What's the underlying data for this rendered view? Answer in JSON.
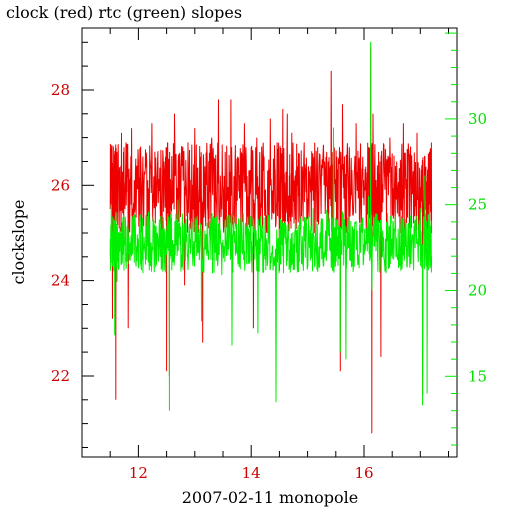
{
  "chart_data": {
    "type": "line",
    "title": "clock (red) rtc (green) slopes",
    "xlabel": "2007-02-11 monopole",
    "ylabel_left": "clockslope",
    "ylabel_right": "",
    "xlim": [
      11.0,
      17.65
    ],
    "ylim_left": [
      20.3,
      29.3
    ],
    "ylim_right": [
      10.3,
      35.3
    ],
    "x_ticks": [
      12,
      14,
      16
    ],
    "x_tick_labels": [
      "12",
      "14",
      "16"
    ],
    "y_left_ticks": [
      22,
      24,
      26,
      28
    ],
    "y_left_tick_labels": [
      "22",
      "24",
      "26",
      "28"
    ],
    "y_right_ticks": [
      15,
      20,
      25,
      30
    ],
    "y_right_tick_labels": [
      "15",
      "20",
      "25",
      "30"
    ],
    "grid": false,
    "colors": {
      "clock": "#ee0000",
      "rtc": "#00ee00",
      "left_axis_labels": "#cc0000",
      "right_axis_labels": "#00dd00",
      "frame": "#000000"
    },
    "series": [
      {
        "name": "clock",
        "axis": "left",
        "x_start": 11.5,
        "x_end": 17.2,
        "typical_range": [
          25.0,
          26.9
        ],
        "points": [
          [
            11.5,
            25.5
          ],
          [
            11.52,
            26.5
          ],
          [
            11.54,
            23.2
          ],
          [
            11.56,
            26.4
          ],
          [
            11.58,
            24.5
          ],
          [
            11.6,
            21.5
          ],
          [
            11.62,
            26.7
          ],
          [
            11.66,
            25.1
          ],
          [
            11.7,
            27.1
          ],
          [
            11.74,
            24.8
          ],
          [
            11.78,
            26.9
          ],
          [
            11.82,
            23.0
          ],
          [
            11.88,
            27.2
          ],
          [
            11.94,
            25.5
          ],
          [
            12.0,
            26.5
          ],
          [
            12.06,
            25.0
          ],
          [
            12.12,
            26.3
          ],
          [
            12.18,
            25.4
          ],
          [
            12.24,
            27.3
          ],
          [
            12.3,
            25.2
          ],
          [
            12.36,
            26.1
          ],
          [
            12.42,
            25.0
          ],
          [
            12.48,
            26.6
          ],
          [
            12.5,
            22.1
          ],
          [
            12.52,
            26.9
          ],
          [
            12.55,
            22.0
          ],
          [
            12.58,
            25.7
          ],
          [
            12.64,
            27.5
          ],
          [
            12.7,
            25.3
          ],
          [
            12.76,
            26.4
          ],
          [
            12.82,
            23.9
          ],
          [
            12.88,
            26.9
          ],
          [
            12.94,
            25.3
          ],
          [
            13.0,
            27.2
          ],
          [
            13.06,
            25.0
          ],
          [
            13.1,
            26.5
          ],
          [
            13.14,
            22.7
          ],
          [
            13.18,
            26.4
          ],
          [
            13.24,
            25.1
          ],
          [
            13.3,
            27.0
          ],
          [
            13.36,
            25.0
          ],
          [
            13.42,
            27.8
          ],
          [
            13.48,
            25.5
          ],
          [
            13.54,
            26.7
          ],
          [
            13.6,
            25.0
          ],
          [
            13.64,
            27.8
          ],
          [
            13.7,
            25.2
          ],
          [
            13.76,
            26.6
          ],
          [
            13.82,
            25.0
          ],
          [
            13.88,
            27.3
          ],
          [
            13.94,
            25.3
          ],
          [
            14.0,
            26.8
          ],
          [
            14.04,
            23.0
          ],
          [
            14.1,
            27.0
          ],
          [
            14.16,
            25.1
          ],
          [
            14.22,
            26.3
          ],
          [
            14.28,
            25.0
          ],
          [
            14.34,
            27.4
          ],
          [
            14.4,
            25.4
          ],
          [
            14.46,
            26.9
          ],
          [
            14.5,
            24.2
          ],
          [
            14.56,
            27.6
          ],
          [
            14.6,
            25.3
          ],
          [
            14.64,
            27.5
          ],
          [
            14.68,
            25.5
          ],
          [
            14.72,
            27.1
          ],
          [
            14.76,
            25.2
          ],
          [
            14.82,
            26.4
          ],
          [
            14.88,
            25.1
          ],
          [
            14.94,
            26.9
          ],
          [
            15.0,
            25.3
          ],
          [
            15.06,
            26.4
          ],
          [
            15.12,
            25.0
          ],
          [
            15.18,
            26.8
          ],
          [
            15.24,
            25.4
          ],
          [
            15.3,
            26.5
          ],
          [
            15.36,
            25.1
          ],
          [
            15.42,
            28.4
          ],
          [
            15.46,
            25.3
          ],
          [
            15.52,
            26.6
          ],
          [
            15.58,
            22.1
          ],
          [
            15.62,
            27.7
          ],
          [
            15.68,
            25.0
          ],
          [
            15.74,
            26.8
          ],
          [
            15.8,
            25.4
          ],
          [
            15.86,
            27.3
          ],
          [
            15.92,
            25.3
          ],
          [
            15.98,
            26.6
          ],
          [
            16.04,
            25.0
          ],
          [
            16.08,
            26.8
          ],
          [
            16.12,
            28.9
          ],
          [
            16.14,
            20.8
          ],
          [
            16.16,
            27.5
          ],
          [
            16.22,
            25.2
          ],
          [
            16.26,
            26.7
          ],
          [
            16.3,
            22.4
          ],
          [
            16.34,
            26.4
          ],
          [
            16.4,
            25.2
          ],
          [
            16.46,
            27.0
          ],
          [
            16.52,
            25.3
          ],
          [
            16.58,
            26.5
          ],
          [
            16.64,
            25.0
          ],
          [
            16.7,
            27.3
          ],
          [
            16.76,
            25.4
          ],
          [
            16.82,
            26.7
          ],
          [
            16.88,
            25.2
          ],
          [
            16.94,
            27.1
          ],
          [
            17.0,
            25.3
          ],
          [
            17.04,
            21.6
          ],
          [
            17.08,
            26.6
          ],
          [
            17.12,
            24.8
          ],
          [
            17.16,
            26.7
          ],
          [
            17.2,
            25.0
          ]
        ]
      },
      {
        "name": "rtc",
        "axis": "right",
        "x_start": 11.5,
        "x_end": 17.2,
        "typical_range": [
          21.0,
          24.5
        ],
        "points": [
          [
            11.5,
            22.0
          ],
          [
            11.52,
            25.0
          ],
          [
            11.54,
            21.4
          ],
          [
            11.56,
            24.2
          ],
          [
            11.58,
            17.4
          ],
          [
            11.6,
            24.6
          ],
          [
            11.62,
            20.5
          ],
          [
            11.66,
            23.4
          ],
          [
            11.7,
            21.5
          ],
          [
            11.74,
            24.4
          ],
          [
            11.78,
            21.6
          ],
          [
            11.82,
            23.6
          ],
          [
            11.88,
            22.0
          ],
          [
            11.94,
            24.4
          ],
          [
            12.0,
            21.4
          ],
          [
            12.06,
            23.4
          ],
          [
            12.12,
            22.1
          ],
          [
            12.18,
            24.6
          ],
          [
            12.24,
            21.9
          ],
          [
            12.3,
            23.2
          ],
          [
            12.36,
            22.1
          ],
          [
            12.42,
            23.6
          ],
          [
            12.48,
            21.5
          ],
          [
            12.52,
            24.4
          ],
          [
            12.55,
            13.0
          ],
          [
            12.58,
            23.6
          ],
          [
            12.64,
            21.9
          ],
          [
            12.7,
            25.3
          ],
          [
            12.76,
            22.1
          ],
          [
            12.82,
            23.4
          ],
          [
            12.88,
            21.2
          ],
          [
            12.94,
            23.9
          ],
          [
            13.0,
            22.0
          ],
          [
            13.06,
            23.3
          ],
          [
            13.12,
            18.2
          ],
          [
            13.18,
            23.5
          ],
          [
            13.24,
            21.9
          ],
          [
            13.3,
            24.3
          ],
          [
            13.36,
            22.2
          ],
          [
            13.42,
            23.9
          ],
          [
            13.48,
            20.9
          ],
          [
            13.54,
            24.1
          ],
          [
            13.6,
            22.4
          ],
          [
            13.66,
            16.8
          ],
          [
            13.7,
            23.4
          ],
          [
            13.76,
            22.2
          ],
          [
            13.82,
            23.6
          ],
          [
            13.88,
            22.0
          ],
          [
            13.94,
            24.3
          ],
          [
            14.0,
            21.7
          ],
          [
            14.06,
            23.1
          ],
          [
            14.12,
            17.5
          ],
          [
            14.18,
            23.6
          ],
          [
            14.24,
            22.3
          ],
          [
            14.3,
            23.4
          ],
          [
            14.36,
            22.2
          ],
          [
            14.44,
            13.5
          ],
          [
            14.5,
            23.6
          ],
          [
            14.56,
            22.0
          ],
          [
            14.62,
            23.8
          ],
          [
            14.68,
            21.9
          ],
          [
            14.74,
            23.4
          ],
          [
            14.8,
            22.2
          ],
          [
            14.86,
            24.3
          ],
          [
            14.92,
            21.6
          ],
          [
            14.98,
            23.9
          ],
          [
            15.04,
            22.5
          ],
          [
            15.1,
            24.8
          ],
          [
            15.16,
            22.1
          ],
          [
            15.22,
            23.3
          ],
          [
            15.28,
            21.4
          ],
          [
            15.34,
            24.7
          ],
          [
            15.4,
            22.3
          ],
          [
            15.46,
            29.5
          ],
          [
            15.52,
            22.0
          ],
          [
            15.58,
            16.4
          ],
          [
            15.62,
            24.6
          ],
          [
            15.68,
            16.0
          ],
          [
            15.72,
            23.4
          ],
          [
            15.78,
            21.4
          ],
          [
            15.84,
            24.0
          ],
          [
            15.9,
            21.6
          ],
          [
            15.96,
            23.4
          ],
          [
            16.02,
            22.3
          ],
          [
            16.08,
            25.5
          ],
          [
            16.12,
            34.5
          ],
          [
            16.14,
            20.0
          ],
          [
            16.18,
            24.3
          ],
          [
            16.24,
            22.1
          ],
          [
            16.3,
            23.4
          ],
          [
            16.36,
            21.8
          ],
          [
            16.42,
            24.5
          ],
          [
            16.48,
            22.0
          ],
          [
            16.54,
            23.6
          ],
          [
            16.6,
            21.8
          ],
          [
            16.66,
            24.0
          ],
          [
            16.72,
            22.0
          ],
          [
            16.78,
            23.5
          ],
          [
            16.84,
            22.3
          ],
          [
            16.9,
            24.1
          ],
          [
            16.96,
            21.9
          ],
          [
            17.0,
            24.8
          ],
          [
            17.04,
            13.3
          ],
          [
            17.08,
            26.7
          ],
          [
            17.12,
            14.0
          ],
          [
            17.16,
            25.0
          ],
          [
            17.2,
            22.0
          ]
        ]
      }
    ]
  }
}
